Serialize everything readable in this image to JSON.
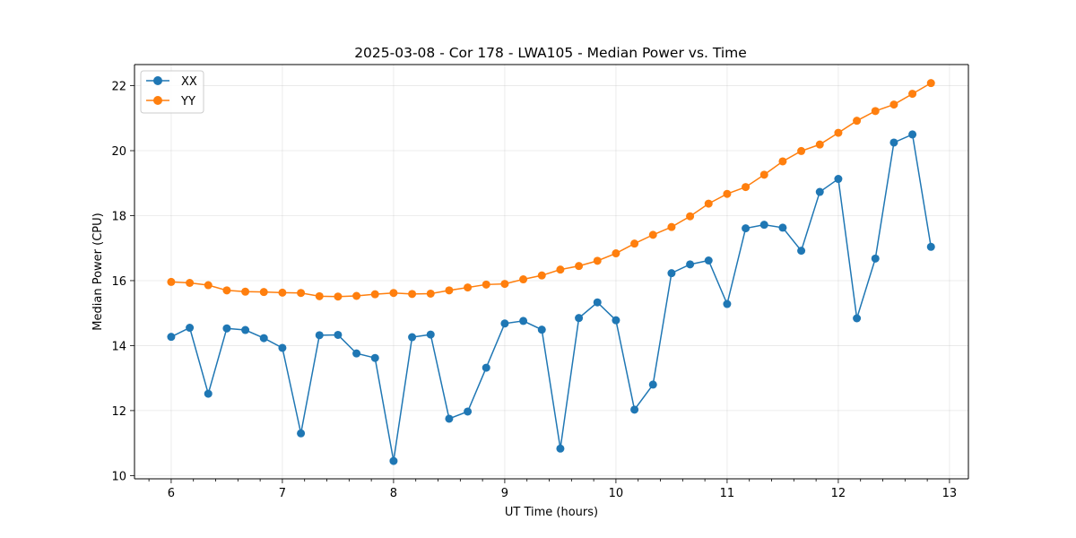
{
  "chart_data": {
    "type": "line",
    "title": "2025-03-08 - Cor 178 - LWA105 - Median Power vs. Time",
    "xlabel": "UT Time (hours)",
    "ylabel": "Median Power (CPU)",
    "xlim": [
      5.67,
      13.17
    ],
    "ylim": [
      9.9,
      22.65
    ],
    "xticks": [
      6,
      7,
      8,
      9,
      10,
      11,
      12,
      13
    ],
    "yticks": [
      10,
      12,
      14,
      16,
      18,
      20,
      22
    ],
    "grid": true,
    "legend_position": "top-left",
    "x": [
      6.0,
      6.1667,
      6.3333,
      6.5,
      6.6667,
      6.8333,
      7.0,
      7.1667,
      7.3333,
      7.5,
      7.6667,
      7.8333,
      8.0,
      8.1667,
      8.3333,
      8.5,
      8.6667,
      8.8333,
      9.0,
      9.1667,
      9.3333,
      9.5,
      9.6667,
      9.8333,
      10.0,
      10.1667,
      10.3333,
      10.5,
      10.6667,
      10.8333,
      11.0,
      11.1667,
      11.3333,
      11.5,
      11.6667,
      11.8333,
      12.0,
      12.1667,
      12.3333,
      12.5,
      12.6667,
      12.8333
    ],
    "series": [
      {
        "name": "XX",
        "color": "#1f77b4",
        "values": [
          14.27,
          14.55,
          12.52,
          14.53,
          14.48,
          14.23,
          13.93,
          11.3,
          14.32,
          14.33,
          13.76,
          13.62,
          10.45,
          14.26,
          14.34,
          11.75,
          11.97,
          13.32,
          14.68,
          14.76,
          14.49,
          10.83,
          14.85,
          15.33,
          14.78,
          12.03,
          12.8,
          16.23,
          16.5,
          16.62,
          15.28,
          17.61,
          17.72,
          17.63,
          16.92,
          18.73,
          19.13,
          14.84,
          16.68,
          20.25,
          20.5,
          17.04
        ]
      },
      {
        "name": "YY",
        "color": "#ff7f0e",
        "values": [
          15.96,
          15.93,
          15.86,
          15.7,
          15.66,
          15.65,
          15.63,
          15.62,
          15.52,
          15.51,
          15.53,
          15.58,
          15.62,
          15.59,
          15.6,
          15.7,
          15.79,
          15.88,
          15.9,
          16.04,
          16.16,
          16.34,
          16.45,
          16.61,
          16.84,
          17.14,
          17.41,
          17.65,
          17.98,
          18.37,
          18.67,
          18.88,
          19.26,
          19.67,
          19.99,
          20.19,
          20.55,
          20.92,
          21.22,
          21.42,
          21.75,
          22.08
        ]
      }
    ]
  }
}
